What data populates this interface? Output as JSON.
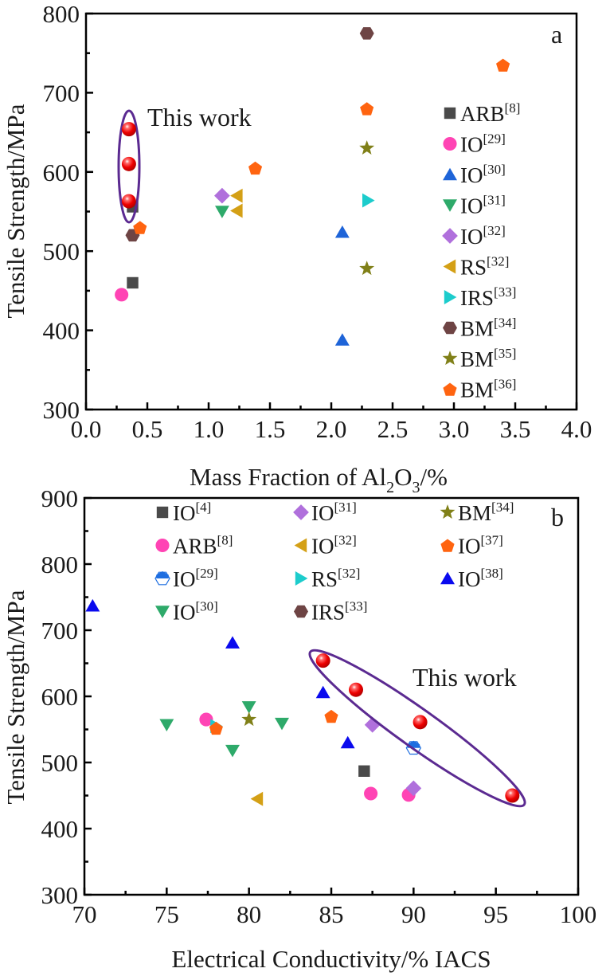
{
  "chart_data": [
    {
      "type": "scatter",
      "panel_label": "a",
      "xlabel": "Mass Fraction of Al2O3/%",
      "xlabel_parts": [
        "Mass Fraction of Al",
        "2",
        "O",
        "3",
        "/%"
      ],
      "ylabel": "Tensile Strength/MPa",
      "xlim": [
        0.0,
        4.0
      ],
      "ylim": [
        300,
        800
      ],
      "x_ticks": [
        "0.0",
        "0.5",
        "1.0",
        "1.5",
        "2.0",
        "2.5",
        "3.0",
        "3.5",
        "4.0"
      ],
      "y_ticks": [
        "300",
        "400",
        "500",
        "600",
        "700",
        "800"
      ],
      "grid": false,
      "legend_position": "right",
      "annotation": "This work",
      "highlight": {
        "name": "This work",
        "color": "#ff1a1a",
        "ellipse_color": "#5b2a91",
        "points": [
          [
            0.35,
            654
          ],
          [
            0.35,
            610
          ],
          [
            0.35,
            563
          ]
        ]
      },
      "series": [
        {
          "name": "ARB",
          "ref": "[8]",
          "marker": "square",
          "color": "#4a4a4a",
          "points": [
            [
              0.38,
              556
            ],
            [
              0.38,
              460
            ]
          ]
        },
        {
          "name": "IO",
          "ref": "[29]",
          "marker": "circle",
          "color": "#ff44b4",
          "points": [
            [
              0.29,
              445
            ]
          ]
        },
        {
          "name": "IO",
          "ref": "[30]",
          "marker": "triangle-up",
          "color": "#1e64d8",
          "points": [
            [
              2.09,
              524
            ],
            [
              2.09,
              388
            ]
          ]
        },
        {
          "name": "IO",
          "ref": "[31]",
          "marker": "triangle-down",
          "color": "#2eaa6a",
          "points": [
            [
              1.11,
              550
            ]
          ]
        },
        {
          "name": "IO",
          "ref": "[32]",
          "marker": "diamond",
          "color": "#b070dc",
          "points": [
            [
              1.11,
              570
            ]
          ]
        },
        {
          "name": "RS",
          "ref": "[32]",
          "marker": "triangle-left",
          "color": "#d4a016",
          "points": [
            [
              1.23,
              570
            ],
            [
              1.23,
              551
            ]
          ]
        },
        {
          "name": "IRS",
          "ref": "[33]",
          "marker": "triangle-right",
          "color": "#1ccccc",
          "points": [
            [
              2.3,
              564
            ]
          ]
        },
        {
          "name": "BM",
          "ref": "[34]",
          "marker": "hexagon",
          "color": "#6e4444",
          "points": [
            [
              0.38,
              520
            ],
            [
              2.29,
              775
            ]
          ]
        },
        {
          "name": "BM",
          "ref": "[35]",
          "marker": "star",
          "color": "#808018",
          "points": [
            [
              2.29,
              630
            ],
            [
              2.29,
              478
            ]
          ]
        },
        {
          "name": "BM",
          "ref": "[36]",
          "marker": "pentagon",
          "color": "#ff6410",
          "points": [
            [
              0.44,
              530
            ],
            [
              1.38,
              605
            ],
            [
              2.29,
              680
            ],
            [
              3.4,
              735
            ]
          ]
        }
      ]
    },
    {
      "type": "scatter",
      "panel_label": "b",
      "xlabel": "Electrical Conductivity/% IACS",
      "ylabel": "Tensile Strength/MPa",
      "xlim": [
        70,
        100
      ],
      "ylim": [
        300,
        900
      ],
      "x_ticks": [
        "70",
        "75",
        "80",
        "85",
        "90",
        "95",
        "100"
      ],
      "y_ticks": [
        "300",
        "400",
        "500",
        "600",
        "700",
        "800",
        "900"
      ],
      "grid": false,
      "legend_position": "top",
      "annotation": "This work",
      "highlight": {
        "name": "This work",
        "color": "#ff1a1a",
        "ellipse_color": "#5b2a91",
        "points": [
          [
            84.5,
            654
          ],
          [
            86.5,
            610
          ],
          [
            90.4,
            561
          ],
          [
            96.0,
            450
          ]
        ]
      },
      "series": [
        {
          "name": "IO",
          "ref": "[4]",
          "marker": "square",
          "color": "#4a4a4a",
          "points": [
            [
              87.0,
              487
            ]
          ]
        },
        {
          "name": "ARB",
          "ref": "[8]",
          "marker": "circle",
          "color": "#ff44b4",
          "points": [
            [
              77.4,
              565
            ],
            [
              87.4,
              453
            ],
            [
              89.7,
              451
            ]
          ]
        },
        {
          "name": "IO",
          "ref": "[29]",
          "marker": "half-hexagon",
          "color": "#1e6ee0",
          "points": [
            [
              90.0,
              522
            ]
          ]
        },
        {
          "name": "IO",
          "ref": "[30]",
          "marker": "triangle-down",
          "color": "#2eaa6a",
          "points": [
            [
              75.0,
              557
            ],
            [
              79.0,
              518
            ],
            [
              80.0,
              584
            ],
            [
              82.0,
              559
            ]
          ]
        },
        {
          "name": "IO",
          "ref": "[31]",
          "marker": "diamond",
          "color": "#b070dc",
          "points": [
            [
              87.5,
              557
            ],
            [
              90.0,
              461
            ]
          ]
        },
        {
          "name": "IO",
          "ref": "[32]",
          "marker": "triangle-left",
          "color": "#d4a016",
          "points": [
            [
              80.5,
              445
            ]
          ]
        },
        {
          "name": "RS",
          "ref": "[32]",
          "marker": "triangle-right",
          "color": "#1ccccc",
          "points": [
            [
              78.0,
              555
            ]
          ]
        },
        {
          "name": "IRS",
          "ref": "[33]",
          "marker": "hexagon",
          "color": "#6e4444",
          "points": []
        },
        {
          "name": "BM",
          "ref": "[34]",
          "marker": "star",
          "color": "#808018",
          "points": [
            [
              80.0,
              565
            ]
          ]
        },
        {
          "name": "IO",
          "ref": "[37]",
          "marker": "pentagon",
          "color": "#ff6410",
          "points": [
            [
              78.0,
              552
            ],
            [
              85.0,
              570
            ]
          ]
        },
        {
          "name": "IO",
          "ref": "[38]",
          "marker": "triangle-up",
          "color": "#0a0aee",
          "points": [
            [
              70.5,
              737
            ],
            [
              79.0,
              681
            ],
            [
              84.5,
              606
            ],
            [
              86.0,
              530
            ]
          ]
        }
      ]
    }
  ]
}
